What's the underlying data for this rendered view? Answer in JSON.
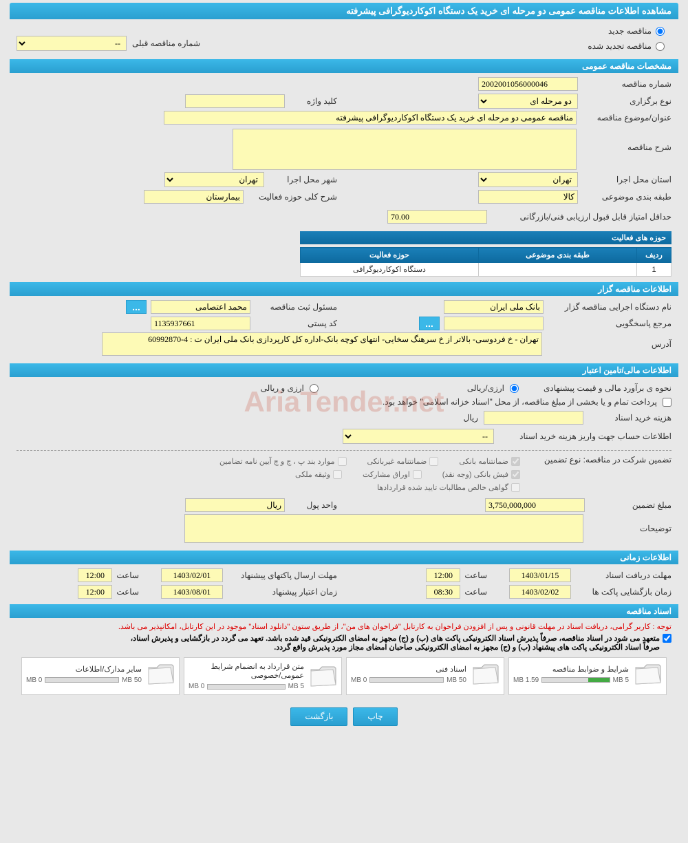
{
  "title": "مشاهده اطلاعات مناقصه عمومی دو مرحله ای خرید یک دستگاه اکوکاردیوگرافی پیشرفته",
  "radios": {
    "new_tender": "مناقصه جدید",
    "renewed_tender": "مناقصه تجدید شده",
    "prev_tender_num_label": "شماره مناقصه قبلی",
    "prev_select": "--"
  },
  "sections": {
    "general": "مشخصات مناقصه عمومی",
    "organizer": "اطلاعات مناقصه گزار",
    "financial": "اطلاعات مالی/تامین اعتبار",
    "time": "اطلاعات زمانی",
    "docs": "اسناد مناقصه"
  },
  "general": {
    "tender_num_label": "شماره مناقصه",
    "tender_num": "2002001056000046",
    "type_label": "نوع برگزاری",
    "type": "دو مرحله ای",
    "keyword_label": "کلید واژه",
    "keyword": "",
    "subject_label": "عنوان/موضوع مناقصه",
    "subject": "مناقصه عمومی دو مرحله ای خرید یک دستگاه اکوکاردیوگرافی پیشرفته",
    "desc_label": "شرح مناقصه",
    "desc": "",
    "province_label": "استان محل اجرا",
    "province": "تهران",
    "city_label": "شهر محل اجرا",
    "city": "تهران",
    "category_label": "طبقه بندی موضوعی",
    "category": "کالا",
    "activity_desc_label": "شرح کلی حوزه فعالیت",
    "activity_desc": "بیمارستان",
    "min_score_label": "حداقل امتیاز قابل قبول ارزیابی فنی/بازرگانی",
    "min_score": "70.00"
  },
  "activity_table": {
    "title": "حوزه های فعالیت",
    "col_row": "ردیف",
    "col_cat": "طبقه بندی موضوعی",
    "col_activity": "حوزه فعالیت",
    "rows": [
      {
        "n": "1",
        "cat": "",
        "act": "دستگاه اکوکاردیوگرافی"
      }
    ]
  },
  "organizer": {
    "org_label": "نام دستگاه اجرایی مناقصه گزار",
    "org": "بانک ملی ایران",
    "reg_officer_label": "مسئول ثبت مناقصه",
    "reg_officer": "محمد اعتصامی",
    "ref_label": "مرجع پاسخگویی",
    "ref": "",
    "postal_label": "کد پستی",
    "postal": "1135937661",
    "address_label": "آدرس",
    "address": "تهران - خ فردوسی- بالاتر از خ سرهنگ سخایی- انتهای کوچه بانک-اداره کل کارپردازی بانک ملی ایران ت : 4-60992870"
  },
  "financial": {
    "method_label": "نحوه ی برآورد مالی و قیمت پیشنهادی",
    "method_rial": "ارزی/ریالی",
    "method_currency": "ارزی و ریالی",
    "treasury_note": "پرداخت تمام و یا بخشی از مبلغ مناقصه، از محل \"اسناد خزانه اسلامی\" خواهد بود.",
    "cost_label": "هزینه خرید اسناد",
    "cost": "",
    "cost_unit": "ریال",
    "account_label": "اطلاعات حساب جهت واریز هزینه خرید اسناد",
    "account": "--",
    "guarantee_label": "تضمین شرکت در مناقصه:   نوع تضمین",
    "chk_bank": "ضمانتنامه بانکی",
    "chk_nonbank": "ضمانتنامه غیربانکی",
    "chk_cases": "موارد بند پ ، ج و چ آیین نامه تضامین",
    "chk_cash": "فیش بانکی (وجه نقد)",
    "chk_securities": "اوراق مشارکت",
    "chk_property": "وثیقه ملکی",
    "chk_cert": "گواهی خالص مطالبات تایید شده قراردادها",
    "amount_label": "مبلغ تضمین",
    "amount": "3,750,000,000",
    "unit_label": "واحد پول",
    "unit": "ریال",
    "notes_label": "توضیحات",
    "notes": ""
  },
  "time": {
    "receive_label": "مهلت دریافت اسناد",
    "receive_date": "1403/01/15",
    "hour_label": "ساعت",
    "receive_hour": "12:00",
    "send_label": "مهلت ارسال پاکتهای پیشنهاد",
    "send_date": "1403/02/01",
    "send_hour": "12:00",
    "open_label": "زمان بازگشایی پاکت ها",
    "open_date": "1403/02/02",
    "open_hour": "08:30",
    "validity_label": "زمان اعتبار پیشنهاد",
    "validity_date": "1403/08/01",
    "validity_hour": "12:00"
  },
  "docs": {
    "note_red": "توجه : کاربر گرامی، دریافت اسناد در مهلت قانونی و پس از افزودن فراخوان به کارتابل \"فراخوان های من\"، از طریق ستون \"دانلود اسناد\" موجود در این کارتابل، امکانپذیر می باشد.",
    "note_bold1": "متعهد می شود در اسناد مناقصه، صرفاً پذیرش اسناد الکترونیکی پاکت های (ب) و (ج) مجهز به امضای الکترونیکی قید شده باشد. تعهد می گردد در بازگشایی و پذیرش اسناد،",
    "note_bold2": "صرفاً اسناد الکترونیکی پاکت های پیشنهاد (ب) و (ج) مجهز به امضای الکترونیکی صاحبان امضای مجاز مورد پذیرش واقع گردد.",
    "cards": [
      {
        "title": "شرایط و ضوابط مناقصه",
        "used": "1.59 MB",
        "max": "5 MB",
        "fill": 32
      },
      {
        "title": "اسناد فنی",
        "used": "0 MB",
        "max": "50 MB",
        "fill": 0
      },
      {
        "title": "متن قرارداد به انضمام شرایط عمومی/خصوصی",
        "used": "0 MB",
        "max": "5 MB",
        "fill": 0
      },
      {
        "title": "سایر مدارک/اطلاعات",
        "used": "0 MB",
        "max": "50 MB",
        "fill": 0
      }
    ]
  },
  "buttons": {
    "print": "چاپ",
    "back": "بازگشت"
  },
  "watermark": "AriaTender.net"
}
